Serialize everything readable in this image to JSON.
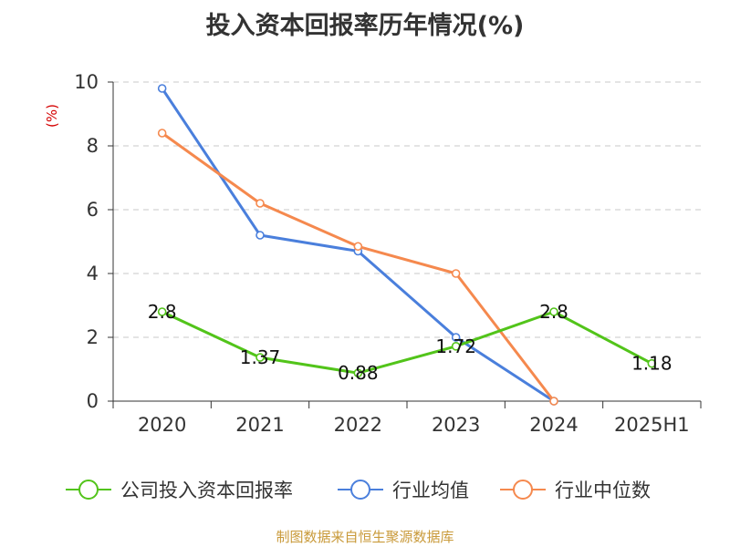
{
  "title": "投入资本回报率历年情况(%)",
  "source": "制图数据来自恒生聚源数据库",
  "colors": {
    "company": "#52c41a",
    "industry_avg": "#4a7fdc",
    "industry_median": "#f5894e",
    "grid": "#c8c8c8",
    "axis": "#333333"
  },
  "chart_data": {
    "type": "line",
    "title": "投入资本回报率历年情况(%)",
    "ylabel": "(%)",
    "xlabel": "",
    "ylim": [
      0,
      10
    ],
    "yticks": [
      0,
      2,
      4,
      6,
      8,
      10
    ],
    "categories": [
      "2020",
      "2021",
      "2022",
      "2023",
      "2024",
      "2025H1"
    ],
    "grid": true,
    "legend_position": "bottom",
    "series": [
      {
        "name": "公司投入资本回报率",
        "color": "#52c41a",
        "values": [
          2.8,
          1.37,
          0.88,
          1.72,
          2.8,
          1.18
        ],
        "labels": [
          "2.8",
          "1.37",
          "0.88",
          "1.72",
          "2.8",
          "1.18"
        ],
        "show_labels": true
      },
      {
        "name": "行业均值",
        "color": "#4a7fdc",
        "values": [
          9.8,
          5.2,
          4.7,
          2.0,
          0.0,
          null
        ],
        "show_labels": false
      },
      {
        "name": "行业中位数",
        "color": "#f5894e",
        "values": [
          8.4,
          6.2,
          4.85,
          4.0,
          0.0,
          null
        ],
        "show_labels": false
      }
    ]
  }
}
